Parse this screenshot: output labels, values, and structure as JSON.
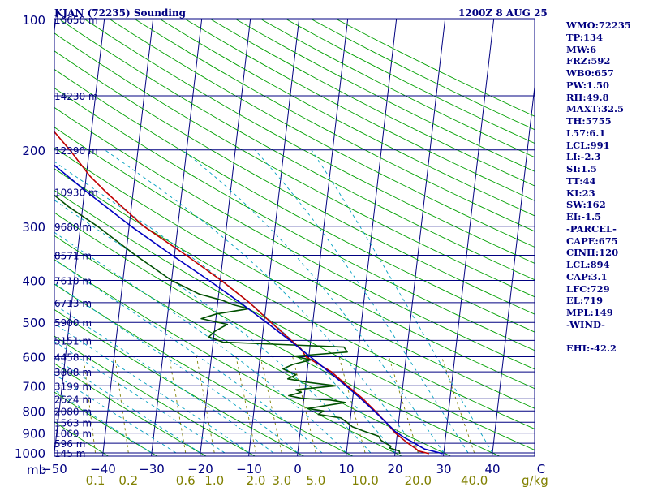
{
  "header": {
    "station": "KJAN (72235) Sounding",
    "time": "1200Z  8 AUG 25"
  },
  "stats": [
    "WMO:72235",
    "TP:134",
    "MW:6",
    "FRZ:592",
    "WB0:657",
    "PW:1.50",
    "RH:49.8",
    "MAXT:32.5",
    "TH:5755",
    "L57:6.1",
    "LCL:991",
    "LI:-2.3",
    "SI:1.5",
    "TT:44",
    "KI:23",
    "SW:162",
    "EI:-1.5",
    "-PARCEL-",
    "CAPE:675",
    "CINH:120",
    "LCL:894",
    "CAP:3.1",
    "LFC:729",
    "EL:719",
    "MPL:149",
    "-WIND-",
    "",
    "EHI:-42.2"
  ],
  "colors": {
    "frame": "#000080",
    "isobar": "#000080",
    "isotherm": "#000080",
    "dry_adiabat": "#00a000",
    "moist_adiabat": "#00a0c0",
    "mixing_ratio": "#808000",
    "temperature": "#c00000",
    "dewpoint": "#005000",
    "parcel": "#0000c0"
  },
  "chart_data": {
    "type": "line",
    "subtype": "skew-T log-P sounding",
    "x_unit": "°C",
    "y_unit": "mb",
    "ylim": [
      1000,
      100
    ],
    "y_scale": "log",
    "xlim_at_1000mb": [
      -50,
      50
    ],
    "grid": true,
    "pressure_ticks": [
      100,
      200,
      300,
      400,
      500,
      600,
      700,
      800,
      900,
      1000
    ],
    "height_labels": [
      {
        "p": 100,
        "label": "16650 m"
      },
      {
        "p": 150,
        "label": "14230 m"
      },
      {
        "p": 200,
        "label": "12390 m"
      },
      {
        "p": 250,
        "label": "10930 m"
      },
      {
        "p": 300,
        "label": "9680 m"
      },
      {
        "p": 350,
        "label": "8571 m"
      },
      {
        "p": 400,
        "label": "7610 m"
      },
      {
        "p": 450,
        "label": "6713 m"
      },
      {
        "p": 500,
        "label": "5900 m"
      },
      {
        "p": 550,
        "label": "5151 m"
      },
      {
        "p": 600,
        "label": "4458 m"
      },
      {
        "p": 650,
        "label": "3808 m"
      },
      {
        "p": 700,
        "label": "3199 m"
      },
      {
        "p": 750,
        "label": "2624 m"
      },
      {
        "p": 800,
        "label": "2080 m"
      },
      {
        "p": 850,
        "label": "1563 m"
      },
      {
        "p": 900,
        "label": "1069 m"
      },
      {
        "p": 950,
        "label": "596 m"
      },
      {
        "p": 1000,
        "label": "145 m"
      }
    ],
    "pressure_unit_label": "mb",
    "temp_ticks": [
      {
        "v": -50,
        "label": "−50"
      },
      {
        "v": -40,
        "label": "−40"
      },
      {
        "v": -30,
        "label": "−30"
      },
      {
        "v": -20,
        "label": "−20"
      },
      {
        "v": -10,
        "label": "−10"
      },
      {
        "v": 0,
        "label": "0"
      },
      {
        "v": 10,
        "label": "10"
      },
      {
        "v": 20,
        "label": "20"
      },
      {
        "v": 30,
        "label": "30"
      },
      {
        "v": 40,
        "label": "40"
      },
      {
        "v": 50,
        "label": "C"
      }
    ],
    "mixing_ratio_ticks": [
      {
        "w": 0.1,
        "label": "0.1"
      },
      {
        "w": 0.2,
        "label": "0.2"
      },
      {
        "w": 0.6,
        "label": "0.6"
      },
      {
        "w": 1.0,
        "label": "1.0"
      },
      {
        "w": 2.0,
        "label": "2.0"
      },
      {
        "w": 3.0,
        "label": "3.0"
      },
      {
        "w": 5.0,
        "label": "5.0"
      },
      {
        "w": 10.0,
        "label": "10.0"
      },
      {
        "w": 20.0,
        "label": "20.0"
      },
      {
        "w": 40.0,
        "label": "40.0"
      }
    ],
    "mixing_ratio_unit": "g/kg",
    "series": [
      {
        "key": "temperature",
        "points": [
          [
            1004,
            27.0
          ],
          [
            990,
            24.8
          ],
          [
            975,
            24.0
          ],
          [
            950,
            22.4
          ],
          [
            925,
            21.0
          ],
          [
            900,
            19.6
          ],
          [
            850,
            17.4
          ],
          [
            800,
            14.9
          ],
          [
            750,
            12.1
          ],
          [
            700,
            8.6
          ],
          [
            650,
            5.0
          ],
          [
            600,
            -0.6
          ],
          [
            575,
            -1.8
          ],
          [
            550,
            -4.0
          ],
          [
            500,
            -8.6
          ],
          [
            450,
            -13.5
          ],
          [
            400,
            -19.8
          ],
          [
            350,
            -27.6
          ],
          [
            300,
            -37.0
          ],
          [
            270,
            -42.0
          ],
          [
            250,
            -45.6
          ],
          [
            230,
            -49.2
          ],
          [
            200,
            -54.0
          ],
          [
            175,
            -59.0
          ],
          [
            150,
            -65.3
          ],
          [
            134,
            -71.0
          ],
          [
            125,
            -68.0
          ],
          [
            110,
            -66.0
          ],
          [
            100,
            -63.0
          ]
        ]
      },
      {
        "key": "dewpoint",
        "points": [
          [
            1004,
            21.0
          ],
          [
            990,
            20.8
          ],
          [
            975,
            18.8
          ],
          [
            965,
            19.0
          ],
          [
            950,
            17.8
          ],
          [
            935,
            16.8
          ],
          [
            915,
            16.2
          ],
          [
            890,
            13.0
          ],
          [
            870,
            10.6
          ],
          [
            850,
            9.4
          ],
          [
            830,
            8.0
          ],
          [
            815,
            3.3
          ],
          [
            800,
            4.3
          ],
          [
            790,
            1.0
          ],
          [
            775,
            5.4
          ],
          [
            765,
            8.6
          ],
          [
            755,
            5.4
          ],
          [
            748,
            -0.5
          ],
          [
            738,
            -3.2
          ],
          [
            725,
            -0.7
          ],
          [
            715,
            -1.9
          ],
          [
            700,
            6.2
          ],
          [
            688,
            0.8
          ],
          [
            675,
            -3.8
          ],
          [
            660,
            -2.2
          ],
          [
            640,
            -5.0
          ],
          [
            625,
            -3.1
          ],
          [
            610,
            0.5
          ],
          [
            598,
            -3.0
          ],
          [
            585,
            7.8
          ],
          [
            570,
            7.0
          ],
          [
            555,
            -18.0
          ],
          [
            540,
            -21.0
          ],
          [
            525,
            -20.0
          ],
          [
            505,
            -17.5
          ],
          [
            490,
            -23.0
          ],
          [
            478,
            -20.0
          ],
          [
            465,
            -13.5
          ],
          [
            455,
            -16.8
          ],
          [
            445,
            -19.0
          ],
          [
            430,
            -24.0
          ],
          [
            400,
            -30.0
          ],
          [
            350,
            -38.0
          ],
          [
            300,
            -46.5
          ],
          [
            270,
            -53.0
          ],
          [
            250,
            -57.0
          ],
          [
            230,
            -61.5
          ],
          [
            200,
            -72.0
          ],
          [
            175,
            -76.0
          ],
          [
            150,
            -80.0
          ],
          [
            134,
            -79.0
          ],
          [
            125,
            -77.0
          ],
          [
            110,
            -78.0
          ],
          [
            100,
            -79.0
          ]
        ]
      },
      {
        "key": "parcel",
        "points": [
          [
            1004,
            29.8
          ],
          [
            980,
            26.0
          ],
          [
            960,
            24.5
          ],
          [
            940,
            23.0
          ],
          [
            920,
            21.4
          ],
          [
            905,
            20.4
          ],
          [
            894,
            19.6
          ],
          [
            850,
            17.4
          ],
          [
            800,
            14.7
          ],
          [
            750,
            11.7
          ],
          [
            700,
            8.3
          ],
          [
            650,
            4.5
          ],
          [
            600,
            0.3
          ],
          [
            550,
            -4.3
          ],
          [
            500,
            -9.5
          ],
          [
            450,
            -15.4
          ],
          [
            400,
            -22.3
          ],
          [
            350,
            -30.5
          ],
          [
            300,
            -39.6
          ],
          [
            250,
            -49.5
          ],
          [
            200,
            -61.0
          ],
          [
            175,
            -68.0
          ],
          [
            150,
            -76.0
          ],
          [
            135,
            -82.0
          ],
          [
            118,
            -89.0
          ]
        ]
      }
    ]
  }
}
